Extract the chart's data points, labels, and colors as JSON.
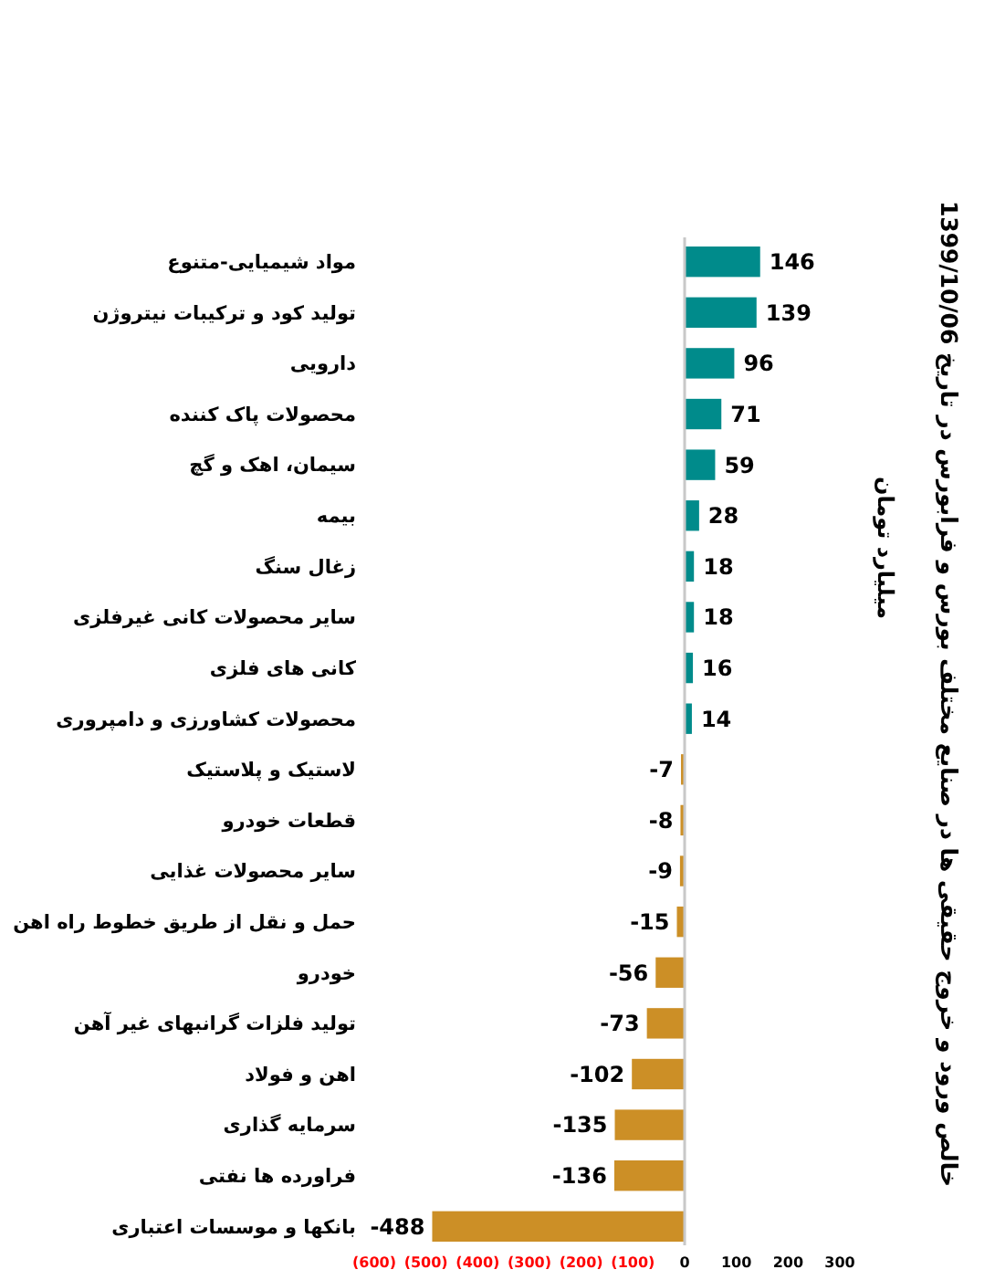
{
  "chart_data": {
    "type": "bar",
    "orientation": "horizontal",
    "title": "خالص ورود و خروج حقیقی ها در صنایع مختلف بورس و فرابورس در تاریخ 1399/10/06",
    "annotations": [
      "میلیارد تومان"
    ],
    "categories": [
      "مواد شیمیایی-متنوع",
      "تولید کود و ترکیبات نیتروژن",
      "دارویی",
      "محصولات پاک کننده",
      "سیمان، اهک و گچ",
      "بیمه",
      "زغال سنگ",
      "سایر محصولات کانی غیرفلزی",
      "کانی های فلزی",
      "محصولات کشاورزی و دامپروری",
      "لاستیک و پلاستیک",
      "قطعات خودرو",
      "سایر محصولات غذایی",
      "حمل و نقل از طریق خطوط راه اهن",
      "خودرو",
      "تولید فلزات گرانبهای غیر آهن",
      "اهن و فولاد",
      "سرمایه گذاری",
      "فراورده ها نفتی",
      "بانکها و موسسات اعتباری"
    ],
    "values": [
      146,
      139,
      96,
      71,
      59,
      28,
      18,
      18,
      16,
      14,
      -7,
      -8,
      -9,
      -15,
      -56,
      -73,
      -102,
      -135,
      -136,
      -488
    ],
    "colors": [
      "#008b8b",
      "#008b8b",
      "#008b8b",
      "#008b8b",
      "#008b8b",
      "#008b8b",
      "#008b8b",
      "#008b8b",
      "#008b8b",
      "#008b8b",
      "#cc8f26",
      "#cc8f26",
      "#cc8f26",
      "#cc8f26",
      "#cc8f26",
      "#cc8f26",
      "#cc8f26",
      "#cc8f26",
      "#cc8f26",
      "#cc8f26"
    ],
    "xlim": [
      -600,
      300
    ],
    "xticks": [
      {
        "value": -600,
        "label": "(600)"
      },
      {
        "value": -500,
        "label": "(500)"
      },
      {
        "value": -400,
        "label": "(400)"
      },
      {
        "value": -300,
        "label": "(300)"
      },
      {
        "value": -200,
        "label": "(200)"
      },
      {
        "value": -100,
        "label": "(100)"
      },
      0,
      100,
      200,
      300
    ],
    "data_labels": true
  }
}
